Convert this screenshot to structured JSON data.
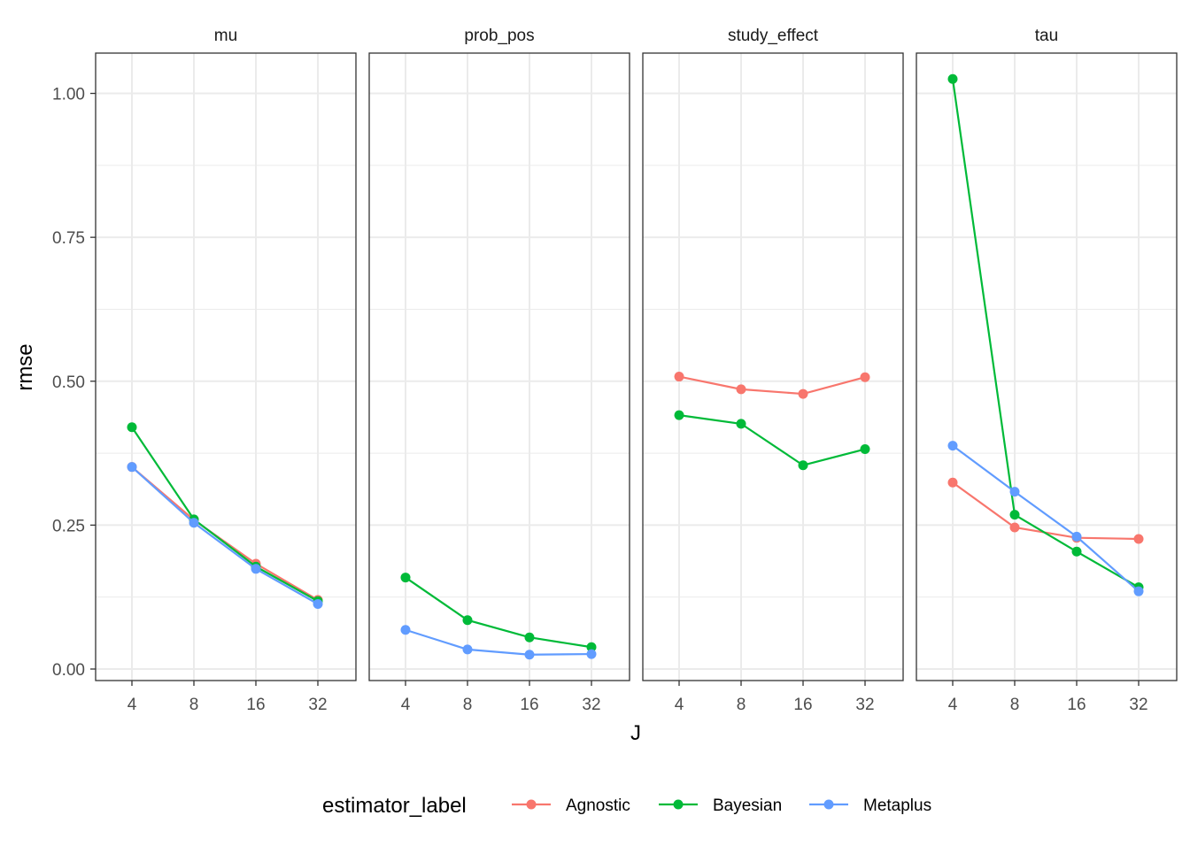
{
  "chart_data": {
    "type": "line",
    "facets": [
      "mu",
      "prob_pos",
      "study_effect",
      "tau"
    ],
    "x": [
      4,
      8,
      16,
      32
    ],
    "x_tick_labels": [
      "4",
      "8",
      "16",
      "32"
    ],
    "xlabel": "J",
    "ylabel": "rmse",
    "ylim": [
      -0.02,
      1.07
    ],
    "y_ticks": [
      0.0,
      0.25,
      0.5,
      0.75,
      1.0
    ],
    "y_tick_labels": [
      "0.00",
      "0.25",
      "0.50",
      "0.75",
      "1.00"
    ],
    "grid": true,
    "legend": {
      "title": "estimator_label",
      "position": "bottom",
      "entries": [
        "Agnostic",
        "Bayesian",
        "Metaplus"
      ]
    },
    "colors": {
      "Agnostic": "#F8766D",
      "Bayesian": "#00BA38",
      "Metaplus": "#619CFF"
    },
    "panels": [
      {
        "facet": "mu",
        "series": [
          {
            "name": "Agnostic",
            "values": [
              0.351,
              0.259,
              0.183,
              0.12
            ]
          },
          {
            "name": "Bayesian",
            "values": [
              0.42,
              0.26,
              0.178,
              0.118
            ]
          },
          {
            "name": "Metaplus",
            "values": [
              0.351,
              0.254,
              0.174,
              0.113
            ]
          }
        ]
      },
      {
        "facet": "prob_pos",
        "series": [
          {
            "name": "Bayesian",
            "values": [
              0.159,
              0.085,
              0.055,
              0.038
            ]
          },
          {
            "name": "Metaplus",
            "values": [
              0.068,
              0.034,
              0.025,
              0.026
            ]
          }
        ]
      },
      {
        "facet": "study_effect",
        "series": [
          {
            "name": "Agnostic",
            "values": [
              0.508,
              0.486,
              0.478,
              0.507
            ]
          },
          {
            "name": "Bayesian",
            "values": [
              0.441,
              0.426,
              0.354,
              0.382
            ]
          }
        ]
      },
      {
        "facet": "tau",
        "series": [
          {
            "name": "Agnostic",
            "values": [
              0.324,
              0.246,
              0.228,
              0.226
            ]
          },
          {
            "name": "Bayesian",
            "values": [
              1.025,
              0.268,
              0.204,
              0.142
            ]
          },
          {
            "name": "Metaplus",
            "values": [
              0.388,
              0.308,
              0.23,
              0.135
            ]
          }
        ]
      }
    ]
  }
}
